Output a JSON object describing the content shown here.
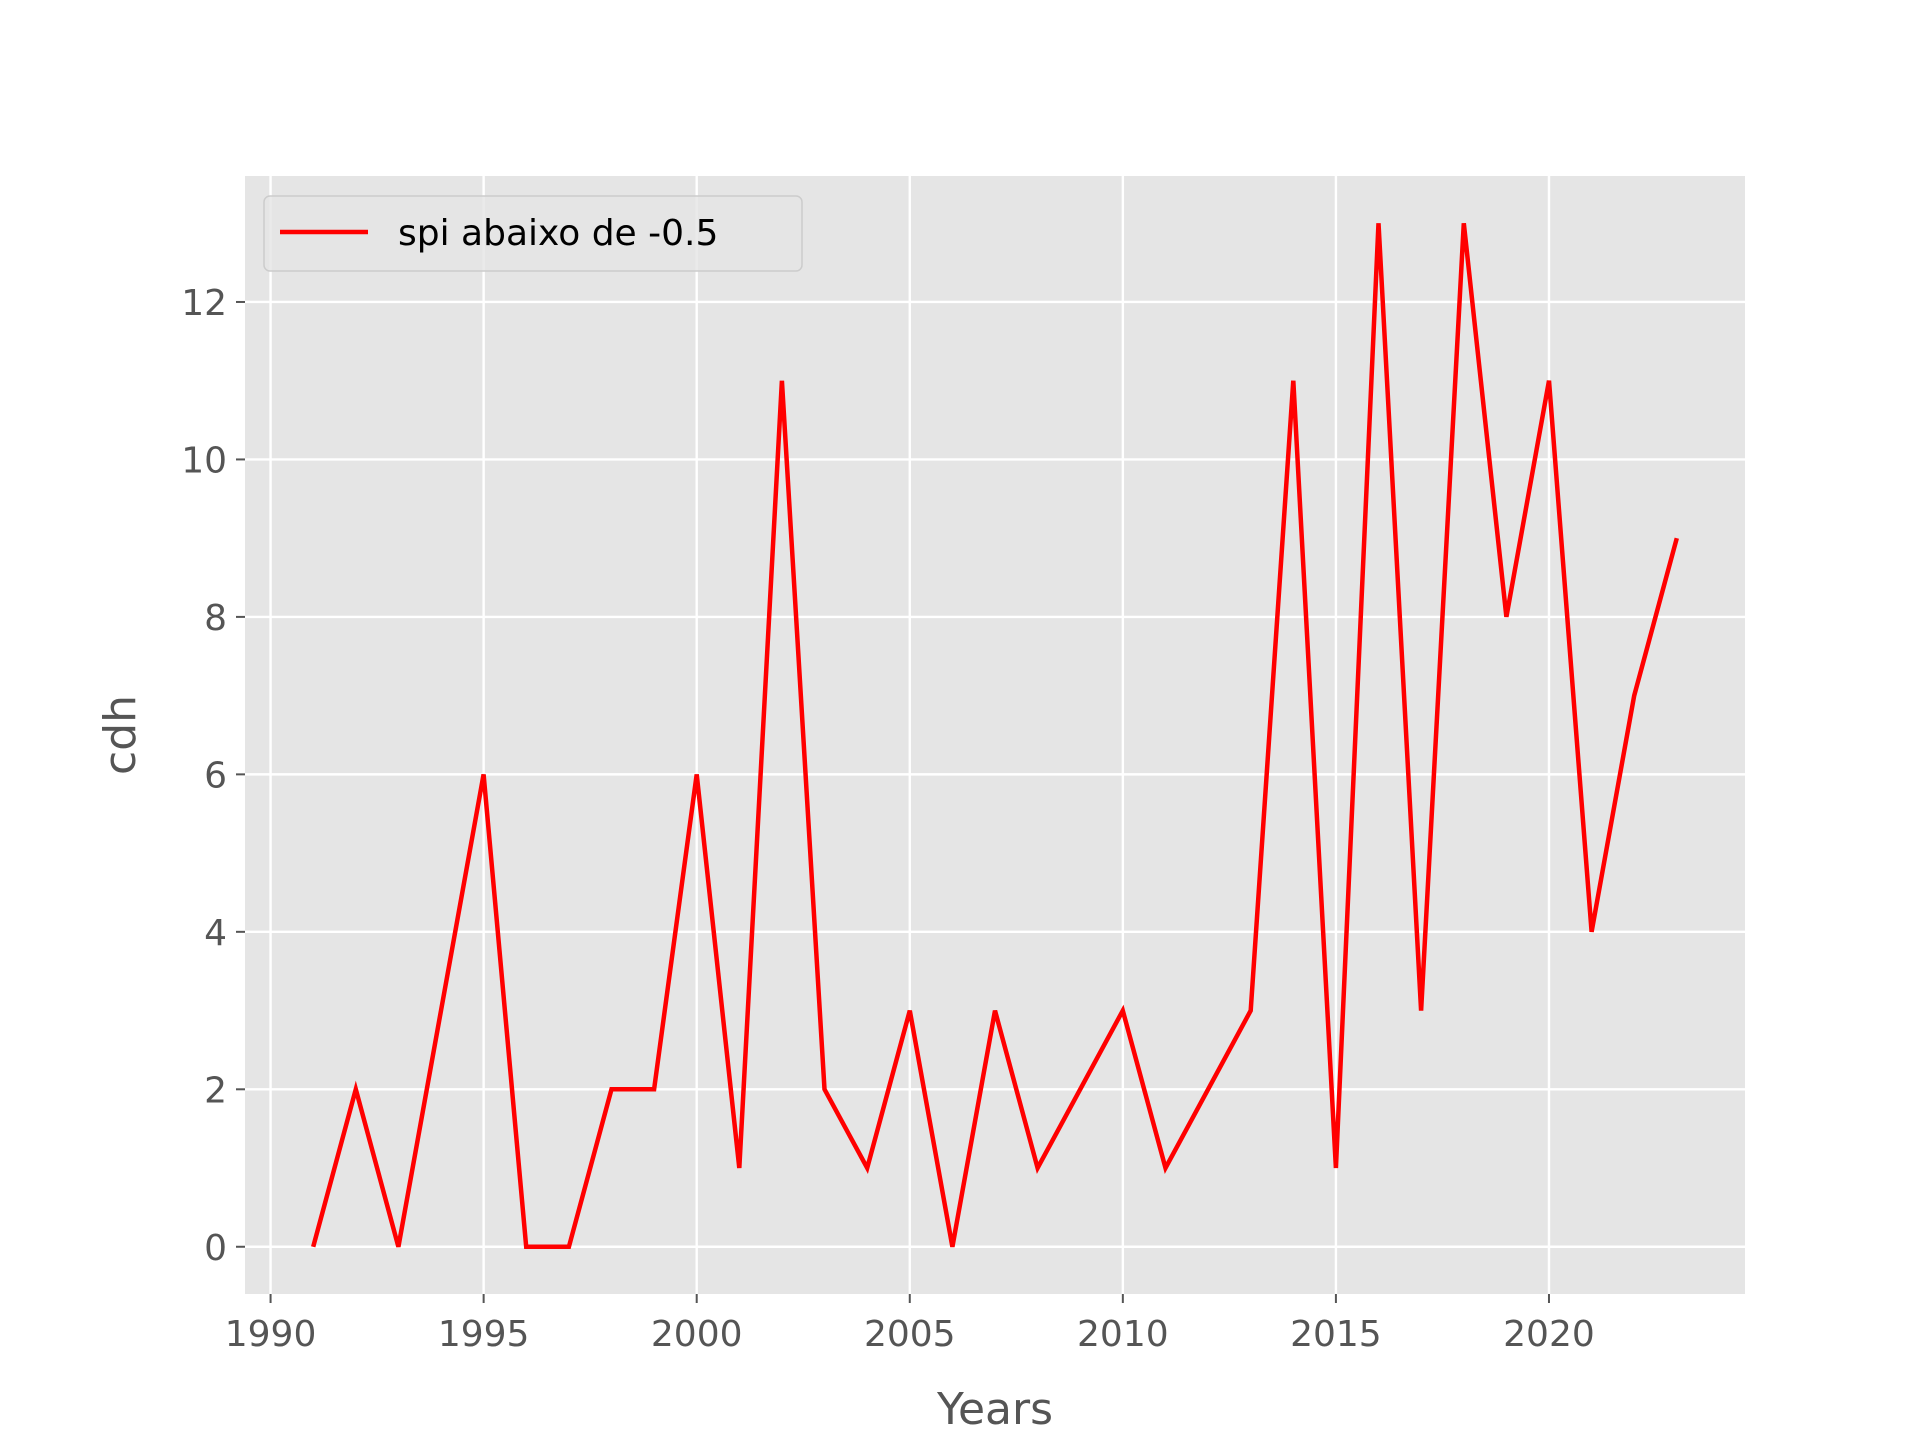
{
  "chart_data": {
    "type": "line",
    "title": "",
    "xlabel": "Years",
    "ylabel": "cdh",
    "xlim": [
      1989.4,
      2024.6
    ],
    "ylim": [
      -0.6,
      13.6
    ],
    "xticks": [
      1990,
      1995,
      2000,
      2005,
      2010,
      2015,
      2020
    ],
    "yticks": [
      0,
      2,
      4,
      6,
      8,
      10,
      12
    ],
    "grid": true,
    "legend_position": "upper-left",
    "style": {
      "background": "#e5e5e5",
      "grid_color": "#ffffff",
      "line_color": "#ff0000",
      "tick_color": "#555555"
    },
    "series": [
      {
        "name": "spi abaixo de  -0.5",
        "x": [
          1991,
          1992,
          1993,
          1994,
          1995,
          1996,
          1997,
          1998,
          1999,
          2000,
          2001,
          2002,
          2003,
          2004,
          2005,
          2006,
          2007,
          2008,
          2009,
          2010,
          2011,
          2012,
          2013,
          2014,
          2015,
          2016,
          2017,
          2018,
          2019,
          2020,
          2021,
          2022,
          2023
        ],
        "y": [
          0,
          2,
          0,
          3,
          6,
          0,
          0,
          2,
          2,
          6,
          1,
          11,
          2,
          1,
          3,
          0,
          3,
          1,
          2,
          3,
          1,
          2,
          3,
          11,
          1,
          13,
          3,
          13,
          8,
          11,
          4,
          7,
          9
        ]
      }
    ]
  }
}
